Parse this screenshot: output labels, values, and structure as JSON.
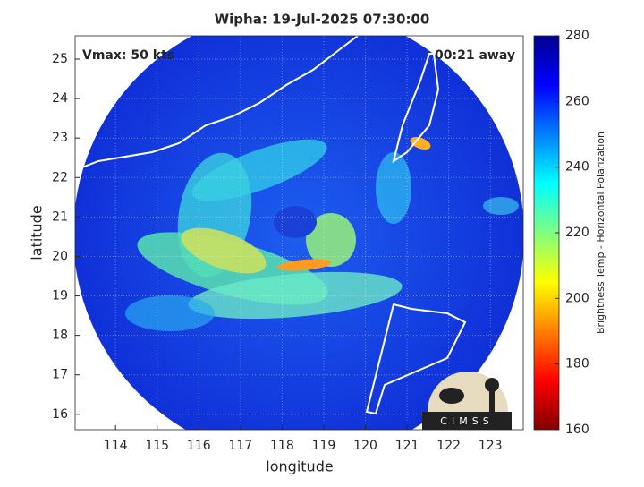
{
  "chart_data": {
    "type": "image",
    "title": "Wipha: 19-Jul-2025 07:30:00",
    "annotations": [
      "Vmax: 50 kts",
      "00:21 away"
    ],
    "xlabel": "longitude",
    "ylabel": "latitude",
    "xlim": [
      113.03,
      123.79
    ],
    "xticks": [
      114,
      115,
      116,
      117,
      118,
      119,
      120,
      121,
      122,
      123
    ],
    "ylim": [
      15.61,
      25.59
    ],
    "yticks": [
      16,
      17,
      18,
      19,
      20,
      21,
      22,
      23,
      24,
      25
    ],
    "grid": true,
    "colorbar": {
      "label": "Brightness Temp - Horizontal Polarization",
      "lim": [
        160,
        280
      ],
      "ticks": [
        160,
        180,
        200,
        220,
        240,
        260,
        280
      ]
    },
    "logo": "CIMSS"
  }
}
